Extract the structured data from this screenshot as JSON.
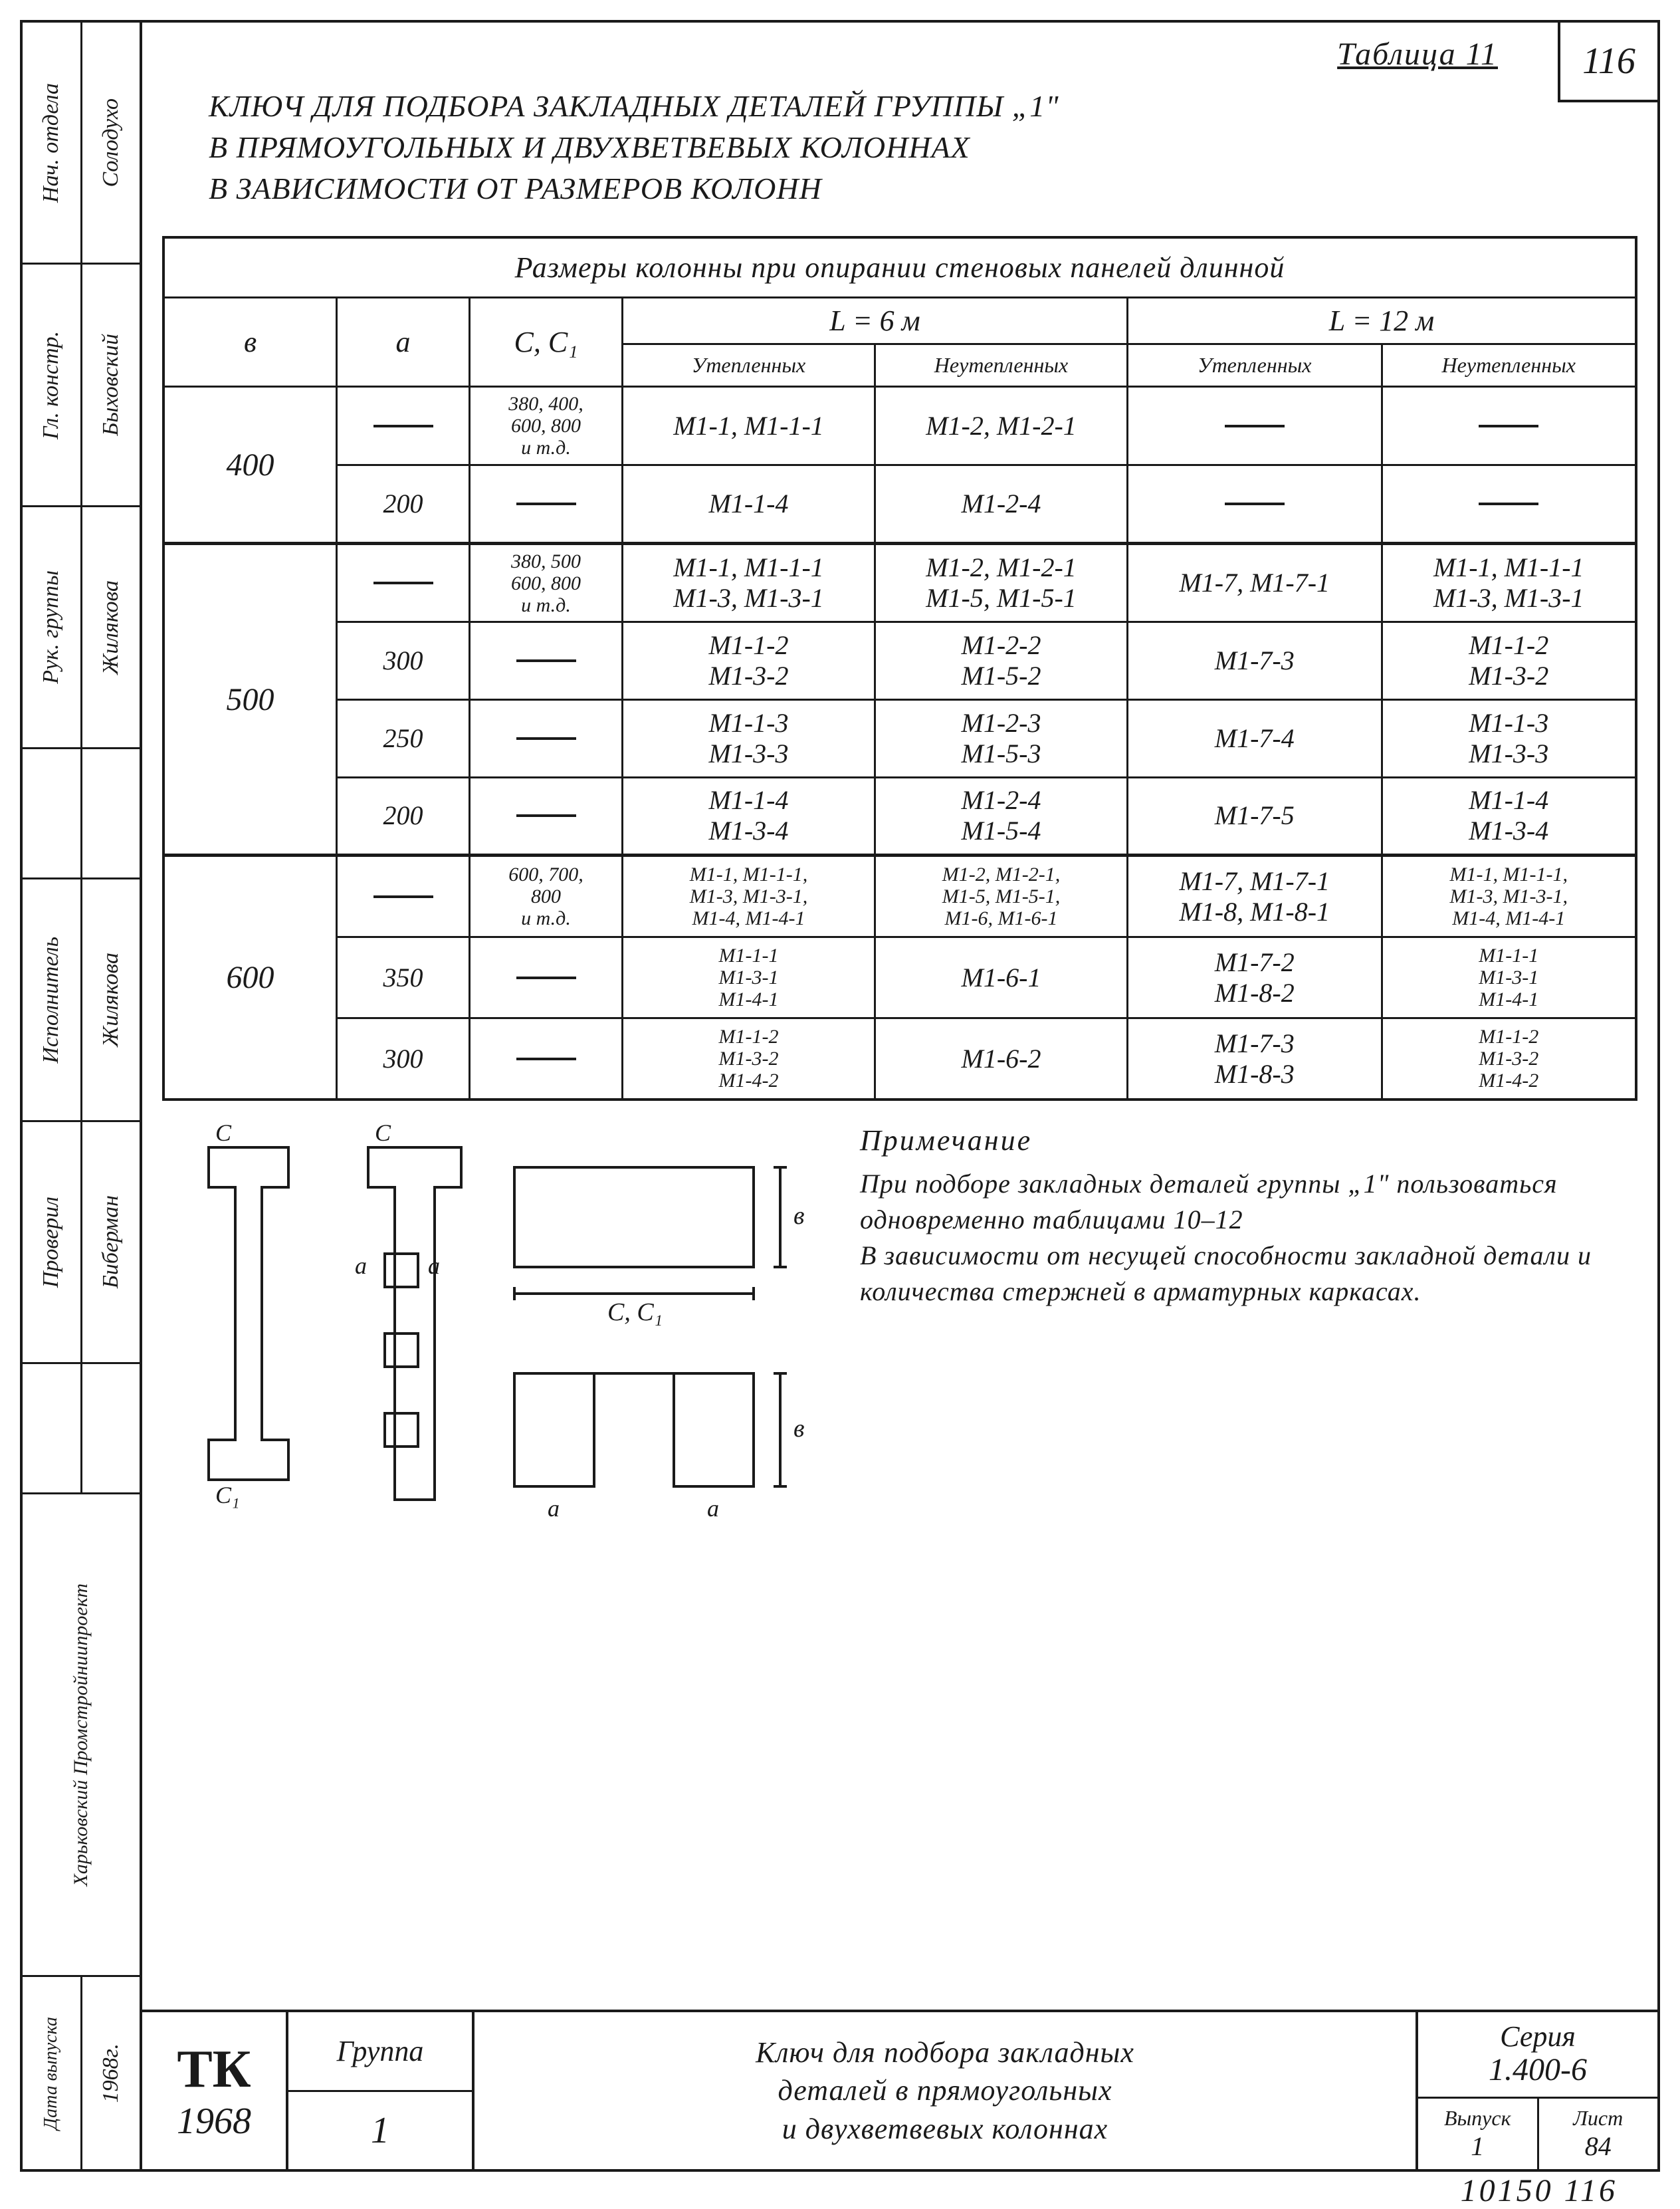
{
  "page_number": "116",
  "table_label": "Таблица 11",
  "title_lines": [
    "Ключ для подбора закладных деталей группы „1\"",
    "в прямоугольных и двухветвевых колоннах",
    "в зависимости от размеров колонн"
  ],
  "table": {
    "span_header": "Размеры колонны при опирании стеновых панелей длинной",
    "col_b": "в",
    "col_a": "а",
    "col_c": "С, С₁",
    "L6": "L = 6 м",
    "L12": "L = 12 м",
    "sub_ins": "Утепленных",
    "sub_unins": "Неутепленных",
    "groups": [
      {
        "b": "400",
        "rows": [
          {
            "a": "—",
            "c": "380, 400,\n600, 800\nи т.д.",
            "l6_ins": "М1-1, М1-1-1",
            "l6_un": "М1-2, М1-2-1",
            "l12_ins": "—",
            "l12_un": "—"
          },
          {
            "a": "200",
            "c": "—",
            "l6_ins": "М1-1-4",
            "l6_un": "М1-2-4",
            "l12_ins": "—",
            "l12_un": "—"
          }
        ]
      },
      {
        "b": "500",
        "rows": [
          {
            "a": "—",
            "c": "380, 500\n600, 800\nи т.д.",
            "l6_ins": "М1-1, М1-1-1\nМ1-3, М1-3-1",
            "l6_un": "М1-2, М1-2-1\nМ1-5, М1-5-1",
            "l12_ins": "М1-7, М1-7-1",
            "l12_un": "М1-1, М1-1-1\nМ1-3, М1-3-1"
          },
          {
            "a": "300",
            "c": "—",
            "l6_ins": "М1-1-2\nМ1-3-2",
            "l6_un": "М1-2-2\nМ1-5-2",
            "l12_ins": "М1-7-3",
            "l12_un": "М1-1-2\nМ1-3-2"
          },
          {
            "a": "250",
            "c": "—",
            "l6_ins": "М1-1-3\nМ1-3-3",
            "l6_un": "М1-2-3\nМ1-5-3",
            "l12_ins": "М1-7-4",
            "l12_un": "М1-1-3\nМ1-3-3"
          },
          {
            "a": "200",
            "c": "—",
            "l6_ins": "М1-1-4\nМ1-3-4",
            "l6_un": "М1-2-4\nМ1-5-4",
            "l12_ins": "М1-7-5",
            "l12_un": "М1-1-4\nМ1-3-4"
          }
        ]
      },
      {
        "b": "600",
        "rows": [
          {
            "a": "—",
            "c": "600, 700,\n800\nи т.д.",
            "l6_ins": "М1-1, М1-1-1,\nМ1-3, М1-3-1,\nМ1-4, М1-4-1",
            "l6_un": "М1-2, М1-2-1,\nМ1-5, М1-5-1,\nМ1-6, М1-6-1",
            "l12_ins": "М1-7, М1-7-1\nМ1-8, М1-8-1",
            "l12_un": "М1-1, М1-1-1,\nМ1-3, М1-3-1,\nМ1-4, М1-4-1"
          },
          {
            "a": "350",
            "c": "—",
            "l6_ins": "М1-1-1\nМ1-3-1\nМ1-4-1",
            "l6_un": "М1-6-1",
            "l12_ins": "М1-7-2\nМ1-8-2",
            "l12_un": "М1-1-1\nМ1-3-1\nМ1-4-1"
          },
          {
            "a": "300",
            "c": "—",
            "l6_ins": "М1-1-2\nМ1-3-2\nМ1-4-2",
            "l6_un": "М1-6-2",
            "l12_ins": "М1-7-3\nМ1-8-3",
            "l12_un": "М1-1-2\nМ1-3-2\nМ1-4-2"
          }
        ]
      }
    ]
  },
  "diagram_labels": {
    "c": "С",
    "c1": "С₁",
    "a": "а",
    "v": "в",
    "cc1": "С, С₁"
  },
  "note": {
    "title": "Примечание",
    "body": "При подборе закладных деталей группы „1\" пользоваться одновременно таблицами 10–12\nВ зависимости от несущей способности закладной детали и количества стержней в арматурных каркасах."
  },
  "side": {
    "col1": [
      "Нач. отдела",
      "Гл. констр.",
      "Рук. группы"
    ],
    "col1b": [
      "Солодухо",
      "Быховский",
      "Жилякова"
    ],
    "col2": [
      "Исполнитель",
      "Проверил"
    ],
    "col2b": [
      "Жилякова",
      "Биберман"
    ],
    "org": "Харьковский\nПромстройниипроект",
    "date_label": "Дата выпуска",
    "date": "1968г."
  },
  "stamp": {
    "tk": "ТК",
    "year": "1968",
    "group_label": "Группа",
    "group_val": "1",
    "title": "Ключ для подбора закладных\nдеталей в прямоугольных\nи двухветвевых колоннах",
    "series_label": "Серия",
    "series_val": "1.400-6",
    "issue_label": "Выпуск",
    "issue_val": "1",
    "sheet_label": "Лист",
    "sheet_val": "84"
  },
  "footer": "10150   116"
}
